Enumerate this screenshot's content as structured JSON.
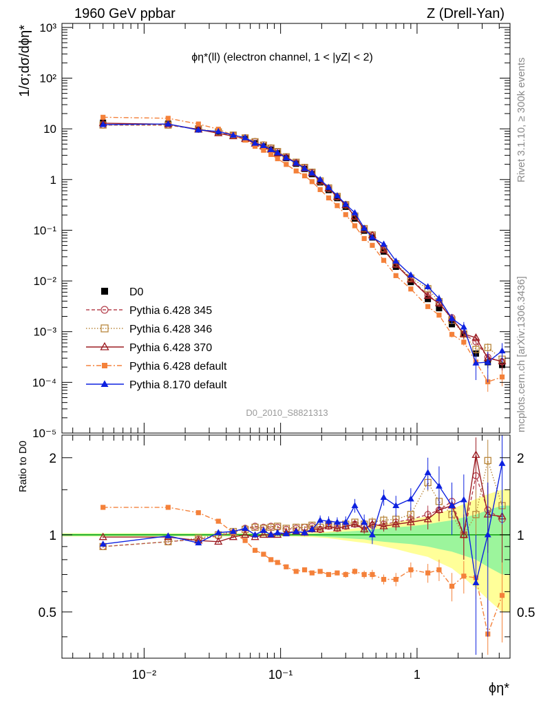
{
  "header": {
    "left": "1960 GeV ppbar",
    "right": "Z (Drell-Yan)",
    "plot_title": "ϕη*(ll) (electron channel, 1 < |yZ| < 2)"
  },
  "side_labels": {
    "rivet": "Rivet 3.1.10, ≥ 300k events",
    "mcplots": "mcplots.cern.ch [arXiv:1306.3436]"
  },
  "watermark": "D0_2010_S8821313",
  "colors": {
    "data": "#000000",
    "p345": "#b5424f",
    "p346": "#b8863b",
    "p370": "#9b1b21",
    "p6def": "#f4813a",
    "p8": "#0d21e0",
    "band_inner": "#9cf59c",
    "band_outer": "#ffff99",
    "band_line": "#17a317"
  },
  "chart_data": {
    "type": "scatter",
    "x_scale": "log",
    "xlim": [
      0.0025,
      4.8
    ],
    "xlabel": "ϕη*",
    "x_ticks": [
      "10⁻²",
      "10⁻¹",
      "1"
    ],
    "main": {
      "ylabel": "1/σ;dσ/dϕη*",
      "y_scale": "log",
      "ylim": [
        1e-05,
        1200
      ],
      "y_ticks": [
        "10³",
        "10²",
        "10",
        "1",
        "10⁻¹",
        "10⁻²",
        "10⁻³",
        "10⁻⁴",
        "10⁻⁵"
      ]
    },
    "ratio": {
      "ylabel": "Ratio to D0",
      "y_scale": "log",
      "ylim": [
        0.33,
        2.45
      ],
      "y_ticks": [
        "2",
        "1",
        "0.5"
      ]
    },
    "legend_position": "bottom-left",
    "x": [
      0.005,
      0.015,
      0.025,
      0.035,
      0.045,
      0.055,
      0.065,
      0.075,
      0.085,
      0.095,
      0.11,
      0.13,
      0.15,
      0.17,
      0.195,
      0.225,
      0.26,
      0.3,
      0.35,
      0.41,
      0.47,
      0.57,
      0.7,
      0.9,
      1.2,
      1.45,
      1.8,
      2.2,
      2.7,
      3.3,
      4.2
    ],
    "series": [
      {
        "name": "D0",
        "key": "data",
        "marker": "filled-square",
        "line": "none",
        "values": [
          13.2,
          12.6,
          10.2,
          8.7,
          7.3,
          6.3,
          5.2,
          4.5,
          3.9,
          3.3,
          2.65,
          2.05,
          1.62,
          1.28,
          0.88,
          0.62,
          0.43,
          0.29,
          0.17,
          0.098,
          0.072,
          0.038,
          0.019,
          0.0095,
          0.0044,
          0.0029,
          0.0014,
          0.0009,
          0.00037,
          0.00025,
          0.00022
        ],
        "errors": [
          0.3,
          0.3,
          0.25,
          0.2,
          0.18,
          0.15,
          0.13,
          0.11,
          0.1,
          0.08,
          0.06,
          0.05,
          0.04,
          0.03,
          0.02,
          0.015,
          0.01,
          0.007,
          0.004,
          0.0025,
          0.002,
          0.0012,
          0.0006,
          0.0004,
          0.0002,
          0.00015,
          0.0001,
          0.0001,
          6e-05,
          6e-05,
          7e-05
        ]
      },
      {
        "name": "Pythia 6.428 345",
        "key": "p345",
        "marker": "open-circle",
        "line": "dashed",
        "ratio": [
          0.9,
          0.94,
          0.96,
          0.99,
          1.02,
          1.06,
          1.08,
          1.07,
          1.08,
          1.07,
          1.05,
          1.06,
          1.07,
          1.08,
          1.05,
          1.08,
          1.06,
          1.08,
          1.1,
          1.07,
          1.09,
          1.1,
          1.12,
          1.15,
          1.2,
          1.25,
          1.35,
          1.0,
          1.7,
          1.25,
          1.15
        ],
        "ratio_err": [
          0.01,
          0.01,
          0.01,
          0.01,
          0.01,
          0.01,
          0.01,
          0.01,
          0.01,
          0.01,
          0.01,
          0.01,
          0.01,
          0.01,
          0.01,
          0.02,
          0.02,
          0.02,
          0.03,
          0.04,
          0.05,
          0.05,
          0.06,
          0.08,
          0.1,
          0.12,
          0.15,
          0.2,
          0.3,
          0.35,
          0.4
        ]
      },
      {
        "name": "Pythia 6.428 346",
        "key": "p346",
        "marker": "open-square",
        "line": "dotted",
        "ratio": [
          0.9,
          0.94,
          0.97,
          1.0,
          1.03,
          1.05,
          1.07,
          1.06,
          1.07,
          1.08,
          1.06,
          1.07,
          1.07,
          1.09,
          1.07,
          1.1,
          1.08,
          1.1,
          1.12,
          1.1,
          1.12,
          1.14,
          1.15,
          1.2,
          1.6,
          1.35,
          1.2,
          1.0,
          1.2,
          1.95,
          1.3
        ],
        "ratio_err": [
          0.01,
          0.01,
          0.01,
          0.01,
          0.01,
          0.01,
          0.01,
          0.01,
          0.01,
          0.01,
          0.01,
          0.01,
          0.01,
          0.01,
          0.01,
          0.02,
          0.02,
          0.02,
          0.03,
          0.04,
          0.05,
          0.05,
          0.06,
          0.08,
          0.12,
          0.14,
          0.16,
          0.2,
          0.3,
          0.4,
          0.45
        ]
      },
      {
        "name": "Pythia 6.428 370",
        "key": "p370",
        "marker": "open-triangle",
        "line": "solid",
        "ratio": [
          0.98,
          0.98,
          0.95,
          0.94,
          0.98,
          1.0,
          0.98,
          1.0,
          1.0,
          1.0,
          1.02,
          1.03,
          1.02,
          1.05,
          1.05,
          1.08,
          1.06,
          1.08,
          1.1,
          1.05,
          1.1,
          1.08,
          1.1,
          1.12,
          1.15,
          1.25,
          1.3,
          1.0,
          2.05,
          1.2,
          1.18
        ],
        "ratio_err": [
          0.01,
          0.01,
          0.01,
          0.01,
          0.01,
          0.01,
          0.01,
          0.01,
          0.01,
          0.01,
          0.01,
          0.01,
          0.01,
          0.01,
          0.01,
          0.02,
          0.02,
          0.02,
          0.03,
          0.04,
          0.05,
          0.05,
          0.06,
          0.08,
          0.1,
          0.12,
          0.15,
          0.2,
          0.35,
          0.35,
          0.4
        ]
      },
      {
        "name": "Pythia 6.428 default",
        "key": "p6def",
        "marker": "filled-small-square",
        "line": "dashdot",
        "ratio": [
          1.28,
          1.28,
          1.22,
          1.13,
          1.02,
          0.95,
          0.87,
          0.84,
          0.8,
          0.78,
          0.75,
          0.72,
          0.73,
          0.71,
          0.72,
          0.7,
          0.71,
          0.7,
          0.72,
          0.7,
          0.7,
          0.67,
          0.67,
          0.73,
          0.71,
          0.73,
          0.63,
          0.69,
          0.68,
          0.41,
          0.58
        ],
        "ratio_err": [
          0.01,
          0.01,
          0.01,
          0.01,
          0.01,
          0.01,
          0.01,
          0.01,
          0.01,
          0.01,
          0.01,
          0.01,
          0.01,
          0.01,
          0.01,
          0.015,
          0.015,
          0.02,
          0.02,
          0.025,
          0.03,
          0.03,
          0.04,
          0.05,
          0.06,
          0.07,
          0.08,
          0.1,
          0.12,
          0.15,
          0.2
        ]
      },
      {
        "name": "Pythia 8.170 default",
        "key": "p8",
        "marker": "filled-triangle",
        "line": "solid",
        "ratio": [
          0.92,
          0.99,
          0.93,
          1.02,
          1.03,
          1.06,
          1.0,
          1.04,
          1.0,
          1.02,
          1.01,
          1.03,
          1.02,
          1.05,
          1.14,
          1.13,
          1.12,
          1.12,
          1.3,
          1.12,
          1.0,
          1.4,
          1.3,
          1.38,
          1.75,
          1.55,
          1.3,
          1.37,
          0.65,
          1.0,
          1.9
        ],
        "ratio_err": [
          0.01,
          0.01,
          0.01,
          0.01,
          0.01,
          0.01,
          0.01,
          0.01,
          0.02,
          0.02,
          0.02,
          0.02,
          0.03,
          0.03,
          0.05,
          0.05,
          0.05,
          0.06,
          0.08,
          0.08,
          0.08,
          0.1,
          0.12,
          0.14,
          0.25,
          0.3,
          0.3,
          0.35,
          0.35,
          0.6,
          0.8
        ]
      }
    ],
    "band_inner_rel": [
      0.01,
      0.01,
      0.01,
      0.01,
      0.01,
      0.01,
      0.01,
      0.01,
      0.01,
      0.01,
      0.01,
      0.01,
      0.01,
      0.01,
      0.015,
      0.02,
      0.025,
      0.03,
      0.035,
      0.04,
      0.05,
      0.06,
      0.07,
      0.08,
      0.1,
      0.12,
      0.14,
      0.17,
      0.2,
      0.25,
      0.3
    ],
    "band_outer_rel": [
      0.015,
      0.015,
      0.015,
      0.015,
      0.015,
      0.015,
      0.015,
      0.015,
      0.015,
      0.015,
      0.015,
      0.015,
      0.02,
      0.02,
      0.025,
      0.03,
      0.04,
      0.05,
      0.06,
      0.07,
      0.08,
      0.1,
      0.12,
      0.15,
      0.18,
      0.22,
      0.26,
      0.32,
      0.38,
      0.44,
      0.5
    ]
  }
}
